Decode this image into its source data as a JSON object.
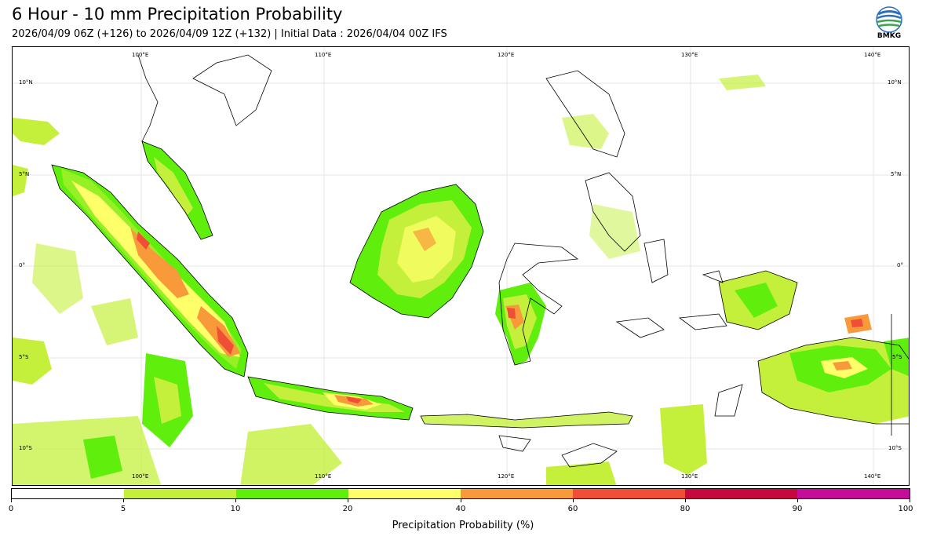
{
  "header": {
    "title": "6 Hour - 10 mm Precipitation Probability",
    "subtitle": "2026/04/09 06Z (+126) to 2026/04/09 12Z (+132) | Initial Data : 2026/04/04 00Z IFS",
    "logo_text": "BMKG"
  },
  "map": {
    "lon_labels": [
      "100°E",
      "110°E",
      "120°E",
      "130°E",
      "140°E"
    ],
    "lat_labels": [
      "10°N",
      "5°N",
      "0°",
      "5°S",
      "10°S"
    ]
  },
  "legend": {
    "title": "Precipitation Probability (%)",
    "ticks": [
      "0",
      "5",
      "10",
      "20",
      "40",
      "60",
      "80",
      "90",
      "100"
    ],
    "colors": [
      "#ffffff",
      "#c4f03c",
      "#60ee0c",
      "#ffff6a",
      "#f99a3a",
      "#ef4f35",
      "#c5093f",
      "#c50c9b"
    ]
  }
}
